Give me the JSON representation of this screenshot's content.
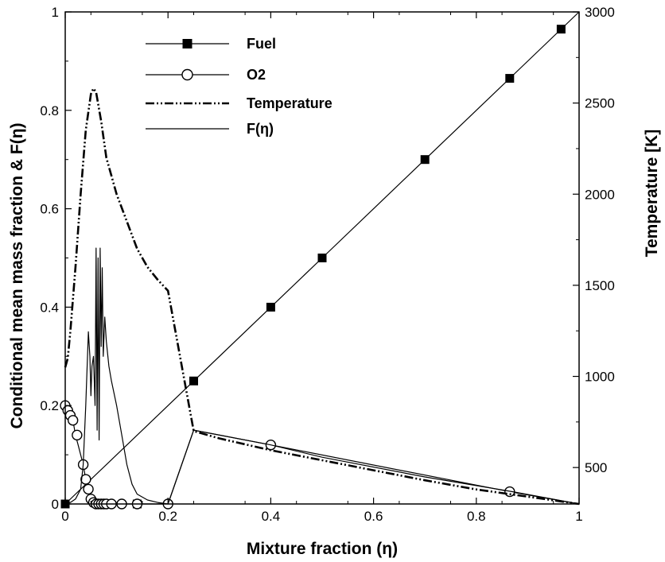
{
  "chart_data": {
    "type": "line",
    "xlabel": "Mixture fraction (η)",
    "ylabel_left": "Conditional mean mass fraction & F(η)",
    "ylabel_right": "Temperature [K]",
    "xlim": [
      0,
      1
    ],
    "ylim_left": [
      0,
      1
    ],
    "ylim_right": [
      300,
      3000
    ],
    "x_ticks": [
      0,
      0.2,
      0.4,
      0.6,
      0.8,
      1
    ],
    "x_tick_labels": [
      "0",
      "0.2",
      "0.4",
      "0.6",
      "0.8",
      "1"
    ],
    "y_left_ticks": [
      0,
      0.2,
      0.4,
      0.6,
      0.8,
      1
    ],
    "y_left_tick_labels": [
      "0",
      "0.2",
      "0.4",
      "0.6",
      "0.8",
      "1"
    ],
    "y_right_ticks": [
      500,
      1000,
      1500,
      2000,
      2500,
      3000
    ],
    "y_right_tick_labels": [
      "500",
      "1000",
      "1500",
      "2000",
      "2500",
      "3000"
    ],
    "grid": false,
    "legend_position": "top-left",
    "series": [
      {
        "name": "Fuel",
        "axis": "left",
        "line": "solid",
        "marker": "filled-square",
        "x": [
          0,
          0.25,
          0.4,
          0.5,
          0.7,
          0.87,
          1
        ],
        "y": [
          0,
          0.25,
          0.4,
          0.5,
          0.7,
          0.87,
          1
        ],
        "marker_x": [
          0,
          0.14,
          0.25,
          0.4,
          0.5,
          0.7,
          0.865,
          0.965
        ],
        "marker_y": [
          0,
          0,
          0.25,
          0.4,
          0.5,
          0.7,
          0.865,
          0.965
        ]
      },
      {
        "name": "O2",
        "axis": "left",
        "line": "solid",
        "marker": "open-circle",
        "x": [
          0,
          0.005,
          0.01,
          0.015,
          0.02,
          0.025,
          0.035,
          0.04,
          0.045,
          0.05,
          0.055,
          0.06,
          0.065,
          0.07,
          0.075,
          0.08,
          0.1,
          0.12,
          0.14,
          0.2,
          0.25,
          0.4,
          0.865,
          1
        ],
        "y": [
          0.2,
          0.19,
          0.18,
          0.17,
          0.14,
          0.12,
          0.08,
          0.05,
          0.03,
          0.01,
          0.003,
          0,
          0,
          0,
          0,
          0,
          0,
          0,
          0,
          0,
          0.15,
          0.12,
          0.025,
          0
        ],
        "marker_x": [
          0,
          0.005,
          0.01,
          0.015,
          0.023,
          0.035,
          0.04,
          0.045,
          0.05,
          0.055,
          0.06,
          0.065,
          0.07,
          0.075,
          0.08,
          0.09,
          0.11,
          0.14,
          0.2,
          0.4,
          0.865
        ],
        "marker_y": [
          0.2,
          0.19,
          0.18,
          0.17,
          0.14,
          0.08,
          0.05,
          0.03,
          0.01,
          0.003,
          0,
          0,
          0,
          0,
          0,
          0,
          0,
          0,
          0,
          0.12,
          0.025
        ]
      },
      {
        "name": "Temperature",
        "axis": "right",
        "line": "dash-dot-dot",
        "x": [
          0,
          0.005,
          0.01,
          0.02,
          0.03,
          0.04,
          0.05,
          0.055,
          0.06,
          0.07,
          0.08,
          0.1,
          0.12,
          0.14,
          0.16,
          0.18,
          0.2,
          0.25,
          0.3,
          0.4,
          0.5,
          0.6,
          0.7,
          0.8,
          0.9,
          1
        ],
        "y": [
          1050,
          1100,
          1250,
          1600,
          2000,
          2350,
          2550,
          2580,
          2560,
          2400,
          2200,
          2000,
          1850,
          1700,
          1600,
          1530,
          1470,
          700,
          660,
          595,
          540,
          485,
          430,
          380,
          340,
          300
        ]
      },
      {
        "name": "F(η)",
        "axis": "left",
        "line": "solid",
        "x": [
          0,
          0.01,
          0.02,
          0.03,
          0.035,
          0.04,
          0.045,
          0.048,
          0.05,
          0.052,
          0.055,
          0.058,
          0.06,
          0.062,
          0.064,
          0.066,
          0.068,
          0.07,
          0.072,
          0.074,
          0.077,
          0.08,
          0.085,
          0.09,
          0.1,
          0.11,
          0.12,
          0.13,
          0.14,
          0.16,
          0.18,
          0.2,
          0.25,
          0.4,
          0.5,
          0.7,
          0.87,
          1
        ],
        "y": [
          0,
          0.003,
          0.01,
          0.03,
          0.08,
          0.2,
          0.35,
          0.3,
          0.22,
          0.28,
          0.3,
          0.2,
          0.52,
          0.15,
          0.5,
          0.13,
          0.52,
          0.32,
          0.48,
          0.3,
          0.38,
          0.33,
          0.28,
          0.25,
          0.2,
          0.14,
          0.08,
          0.04,
          0.02,
          0.008,
          0.003,
          0,
          0.15,
          0.12,
          0.095,
          0.055,
          0.025,
          0
        ]
      }
    ]
  }
}
